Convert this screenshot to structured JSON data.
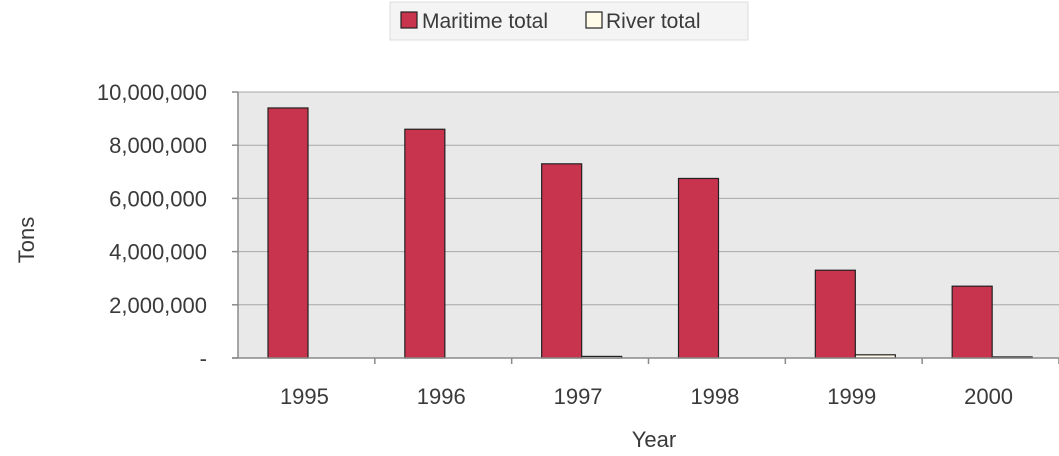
{
  "chart_data": {
    "type": "bar",
    "title": "",
    "xlabel": "Year",
    "ylabel": "Tons",
    "categories": [
      "1995",
      "1996",
      "1997",
      "1998",
      "1999",
      "2000"
    ],
    "series": [
      {
        "name": "Maritime total",
        "color": "#c8334e",
        "values": [
          9400000,
          8600000,
          7300000,
          6750000,
          3300000,
          2700000
        ]
      },
      {
        "name": "River total",
        "color": "#fffbe8",
        "values": [
          0,
          0,
          60000,
          0,
          120000,
          40000
        ]
      }
    ],
    "ylim": [
      0,
      10000000
    ],
    "yticks": [
      0,
      2000000,
      4000000,
      6000000,
      8000000,
      10000000
    ],
    "ytick_labels": [
      "-",
      "2,000,000",
      "4,000,000",
      "6,000,000",
      "8,000,000",
      "10,000,000"
    ],
    "grid": true,
    "legend_position": "top"
  }
}
